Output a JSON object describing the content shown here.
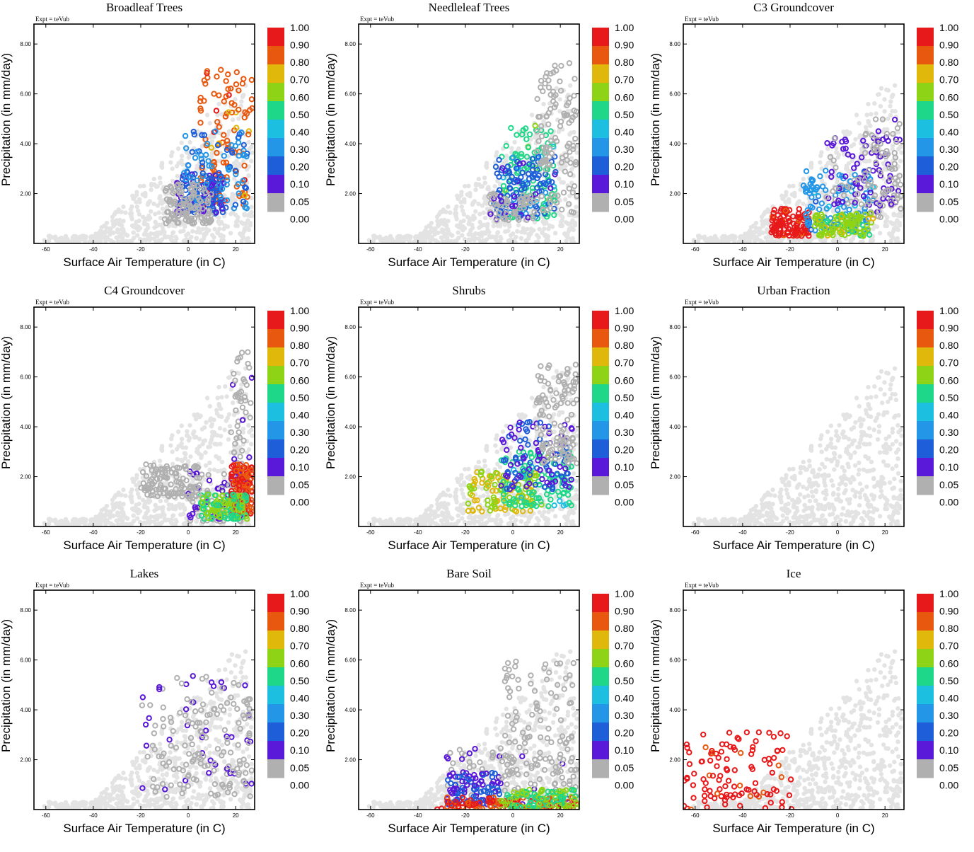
{
  "figure": {
    "experiment_label": "Expt = teVub",
    "xlabel": "Surface Air Temperature (in C)",
    "ylabel": "Precipitation (in mm/day)",
    "x_ticks": [
      "-60",
      "-40",
      "-20",
      "0",
      "20"
    ],
    "y_ticks": [
      "2.00",
      "4.00",
      "6.00",
      "8.00"
    ],
    "colorbar_labels": [
      "1.00",
      "0.90",
      "0.80",
      "0.70",
      "0.60",
      "0.50",
      "0.40",
      "0.30",
      "0.20",
      "0.10",
      "0.05",
      "0.00"
    ],
    "colorbar_colors": [
      "#e8191a",
      "#e8580e",
      "#dfb80b",
      "#8fd316",
      "#1fd788",
      "#1cbfe0",
      "#2396e8",
      "#1e5fd9",
      "#5a18d8",
      "#b0b0b0"
    ],
    "background_color": "#e3e3e3",
    "zero_color": "#b0b0b0"
  },
  "chart_data": [
    {
      "type": "scatter",
      "title": "Broadleaf Trees",
      "xlabel": "Surface Air Temperature (in C)",
      "ylabel": "Precipitation (in mm/day)",
      "xlim": [
        -65,
        28
      ],
      "ylim": [
        0,
        8.8
      ],
      "clusters": [
        {
          "x_range": [
            5,
            27
          ],
          "y_range": [
            1.5,
            7.0
          ],
          "value": 0.85
        },
        {
          "x_range": [
            -5,
            15
          ],
          "y_range": [
            1.2,
            2.8
          ],
          "value": 0.2
        },
        {
          "x_range": [
            -2,
            25
          ],
          "y_range": [
            1.4,
            4.5
          ],
          "value": 0.3
        },
        {
          "x_range": [
            -10,
            10
          ],
          "y_range": [
            0.8,
            2.4
          ],
          "value": 0.0
        }
      ]
    },
    {
      "type": "scatter",
      "title": "Needleleaf Trees",
      "xlabel": "Surface Air Temperature (in C)",
      "ylabel": "Precipitation (in mm/day)",
      "xlim": [
        -65,
        28
      ],
      "ylim": [
        0,
        8.8
      ],
      "clusters": [
        {
          "x_range": [
            -5,
            18
          ],
          "y_range": [
            1.0,
            4.8
          ],
          "value": 0.55
        },
        {
          "x_range": [
            -8,
            18
          ],
          "y_range": [
            1.0,
            3.5
          ],
          "value": 0.25
        },
        {
          "x_range": [
            -10,
            10
          ],
          "y_range": [
            0.9,
            2.0
          ],
          "value": 0.05
        },
        {
          "x_range": [
            10,
            27
          ],
          "y_range": [
            1.2,
            7.3
          ],
          "value": 0.0
        }
      ]
    },
    {
      "type": "scatter",
      "title": "C3 Groundcover",
      "xlabel": "Surface Air Temperature (in C)",
      "ylabel": "Precipitation (in mm/day)",
      "xlim": [
        -65,
        28
      ],
      "ylim": [
        0,
        8.8
      ],
      "clusters": [
        {
          "x_range": [
            -28,
            -12
          ],
          "y_range": [
            0.3,
            1.4
          ],
          "value": 0.95
        },
        {
          "x_range": [
            -15,
            15
          ],
          "y_range": [
            0.5,
            3.0
          ],
          "value": 0.35
        },
        {
          "x_range": [
            -5,
            25
          ],
          "y_range": [
            1.5,
            4.5
          ],
          "value": 0.12
        },
        {
          "x_range": [
            10,
            27
          ],
          "y_range": [
            1.0,
            5.0
          ],
          "value": 0.05
        },
        {
          "x_range": [
            -10,
            15
          ],
          "y_range": [
            0.3,
            1.2
          ],
          "value": 0.65
        }
      ]
    },
    {
      "type": "scatter",
      "title": "C4 Groundcover",
      "xlabel": "Surface Air Temperature (in C)",
      "ylabel": "Precipitation (in mm/day)",
      "xlim": [
        -65,
        28
      ],
      "ylim": [
        0,
        8.8
      ],
      "clusters": [
        {
          "x_range": [
            18,
            27
          ],
          "y_range": [
            0.5,
            7.0
          ],
          "value": 0.05
        },
        {
          "x_range": [
            0,
            25
          ],
          "y_range": [
            0.2,
            2.5
          ],
          "value": 0.1
        },
        {
          "x_range": [
            18,
            27
          ],
          "y_range": [
            0.5,
            2.5
          ],
          "value": 0.9
        },
        {
          "x_range": [
            5,
            25
          ],
          "y_range": [
            0.3,
            1.3
          ],
          "value": 0.6
        },
        {
          "x_range": [
            -20,
            5
          ],
          "y_range": [
            1.2,
            2.5
          ],
          "value": 0.0
        }
      ]
    },
    {
      "type": "scatter",
      "title": "Shrubs",
      "xlabel": "Surface Air Temperature (in C)",
      "ylabel": "Precipitation (in mm/day)",
      "xlim": [
        -65,
        28
      ],
      "ylim": [
        0,
        8.8
      ],
      "clusters": [
        {
          "x_range": [
            -20,
            10
          ],
          "y_range": [
            0.6,
            2.2
          ],
          "value": 0.7
        },
        {
          "x_range": [
            -5,
            25
          ],
          "y_range": [
            0.8,
            3.0
          ],
          "value": 0.55
        },
        {
          "x_range": [
            -5,
            25
          ],
          "y_range": [
            1.5,
            4.2
          ],
          "value": 0.2
        },
        {
          "x_range": [
            10,
            27
          ],
          "y_range": [
            2.5,
            6.5
          ],
          "value": 0.0
        }
      ]
    },
    {
      "type": "scatter",
      "title": "Urban Fraction",
      "xlabel": "Surface Air Temperature (in C)",
      "ylabel": "Precipitation (in mm/day)",
      "xlim": [
        -65,
        28
      ],
      "ylim": [
        0,
        8.8
      ],
      "clusters": []
    },
    {
      "type": "scatter",
      "title": "Lakes",
      "xlabel": "Surface Air Temperature (in C)",
      "ylabel": "Precipitation (in mm/day)",
      "xlim": [
        -65,
        28
      ],
      "ylim": [
        0,
        8.8
      ],
      "clusters": [
        {
          "x_range": [
            -20,
            27
          ],
          "y_range": [
            0.6,
            5.4
          ],
          "value": 0.07
        },
        {
          "x_range": [
            -15,
            27
          ],
          "y_range": [
            0.5,
            4.5
          ],
          "value": 0.0
        }
      ]
    },
    {
      "type": "scatter",
      "title": "Bare Soil",
      "xlabel": "Surface Air Temperature (in C)",
      "ylabel": "Precipitation (in mm/day)",
      "xlim": [
        -65,
        28
      ],
      "ylim": [
        0,
        8.8
      ],
      "clusters": [
        {
          "x_range": [
            -30,
            27
          ],
          "y_range": [
            0.2,
            2.5
          ],
          "value": 0.05
        },
        {
          "x_range": [
            -28,
            -5
          ],
          "y_range": [
            0.2,
            1.5
          ],
          "value": 0.2
        },
        {
          "x_range": [
            -32,
            27
          ],
          "y_range": [
            0.0,
            0.5
          ],
          "value": 0.9
        },
        {
          "x_range": [
            -5,
            27
          ],
          "y_range": [
            0.0,
            0.8
          ],
          "value": 0.6
        },
        {
          "x_range": [
            -5,
            27
          ],
          "y_range": [
            1.0,
            6.0
          ],
          "value": 0.0
        }
      ]
    },
    {
      "type": "scatter",
      "title": "Ice",
      "xlabel": "Surface Air Temperature (in C)",
      "ylabel": "Precipitation (in mm/day)",
      "xlim": [
        -65,
        28
      ],
      "ylim": [
        0,
        8.8
      ],
      "clusters": [
        {
          "x_range": [
            -65,
            -18
          ],
          "y_range": [
            0.0,
            3.2
          ],
          "value": 0.95
        }
      ]
    }
  ]
}
